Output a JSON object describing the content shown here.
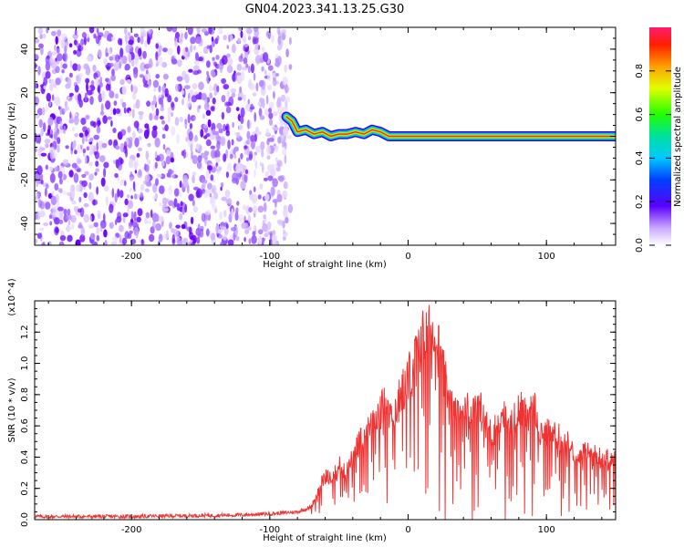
{
  "title": "GN04.2023.341.13.25.G30",
  "chart_data": [
    {
      "type": "heatmap",
      "name": "spectrogram",
      "xlabel": "Height of straight line (km)",
      "ylabel": "Frequency (Hz)",
      "xlim": [
        -270,
        150
      ],
      "ylim": [
        -50,
        50
      ],
      "xticks": [
        -200,
        -100,
        0,
        100
      ],
      "yticks": [
        -40,
        -20,
        0,
        20,
        40
      ],
      "noise_region_x": [
        -270,
        -85
      ],
      "signal_trace": [
        {
          "x": -88,
          "y": 9
        },
        {
          "x": -84,
          "y": 7
        },
        {
          "x": -80,
          "y": 2
        },
        {
          "x": -74,
          "y": 3
        },
        {
          "x": -68,
          "y": 1
        },
        {
          "x": -62,
          "y": 2
        },
        {
          "x": -56,
          "y": 0
        },
        {
          "x": -50,
          "y": 1
        },
        {
          "x": -44,
          "y": 1
        },
        {
          "x": -38,
          "y": 2
        },
        {
          "x": -32,
          "y": 1
        },
        {
          "x": -26,
          "y": 3
        },
        {
          "x": -20,
          "y": 2
        },
        {
          "x": -14,
          "y": 0
        },
        {
          "x": 0,
          "y": 0
        },
        {
          "x": 50,
          "y": 0
        },
        {
          "x": 100,
          "y": 0
        },
        {
          "x": 150,
          "y": 0
        }
      ],
      "colorbar": {
        "label": "Normalized spectral amplitude",
        "range": [
          0,
          1
        ],
        "ticks": [
          "0.0",
          "0.2",
          "0.4",
          "0.6",
          "0.8"
        ]
      },
      "grid": false
    },
    {
      "type": "line",
      "name": "snr",
      "xlabel": "Height of straight line (km)",
      "ylabel": "SNR (10 * v/v)",
      "yscale_label": "(x10^4)",
      "xlim": [
        -270,
        150
      ],
      "ylim": [
        0,
        1.4
      ],
      "xticks": [
        -200,
        -100,
        0,
        100
      ],
      "yticks": [
        "0.0",
        "0.2",
        "0.4",
        "0.6",
        "0.8",
        "1.0",
        "1.2"
      ],
      "series": [
        {
          "color": "#ee3333",
          "x": [
            -270,
            -200,
            -120,
            -95,
            -80,
            -70,
            -65,
            -60,
            -55,
            -50,
            -45,
            -40,
            -35,
            -30,
            -25,
            -20,
            -15,
            -10,
            -5,
            0,
            5,
            10,
            15,
            20,
            25,
            30,
            35,
            40,
            45,
            50,
            55,
            60,
            65,
            70,
            75,
            80,
            85,
            90,
            95,
            100,
            110,
            120,
            130,
            140,
            150
          ],
          "y": [
            0.02,
            0.02,
            0.03,
            0.04,
            0.05,
            0.08,
            0.18,
            0.3,
            0.25,
            0.35,
            0.3,
            0.4,
            0.5,
            0.55,
            0.6,
            0.7,
            0.75,
            0.7,
            0.8,
            0.9,
            1.05,
            1.15,
            1.2,
            1.18,
            0.95,
            0.75,
            0.65,
            0.72,
            0.7,
            0.78,
            0.62,
            0.55,
            0.6,
            0.65,
            0.62,
            0.7,
            0.68,
            0.75,
            0.6,
            0.55,
            0.52,
            0.45,
            0.42,
            0.4,
            0.38
          ]
        }
      ],
      "grid": false
    }
  ],
  "colors": {
    "snr_line": "#ee3333",
    "noise_scatter": "#7b2cff"
  }
}
